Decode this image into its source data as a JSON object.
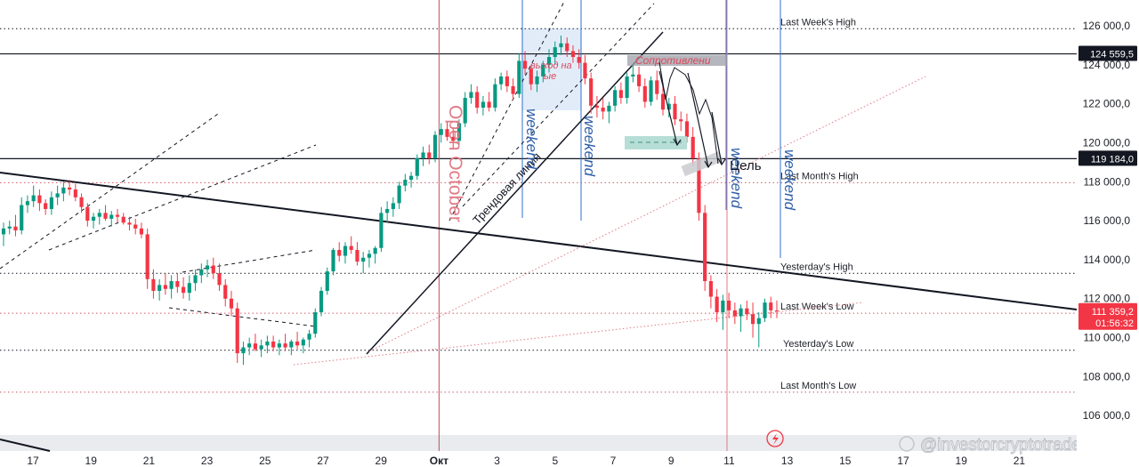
{
  "chart_data": {
    "type": "candlestick",
    "price_axis": {
      "range": [
        105000,
        126800
      ],
      "ticks": [
        126000,
        124000,
        122000,
        120000,
        118000,
        116000,
        114000,
        112000,
        110000,
        108000,
        106000
      ],
      "tick_labels": [
        "126 000,0",
        "124 000,0",
        "122 000,0",
        "120 000,0",
        "118 000,0",
        "116 000,0",
        "114 000,0",
        "112 000,0",
        "110 000,0",
        "108 000,0",
        "106 000,0"
      ]
    },
    "time_axis": {
      "ticks": [
        "17",
        "19",
        "21",
        "23",
        "25",
        "27",
        "29",
        "Окт",
        "3",
        "5",
        "7",
        "9",
        "11",
        "13",
        "15",
        "17",
        "19",
        "21"
      ],
      "tick_index": [
        0,
        2,
        4,
        6,
        8,
        10,
        12,
        14,
        16,
        18,
        20,
        22,
        24,
        26,
        28,
        30,
        32,
        34
      ]
    },
    "price_labels": [
      {
        "value": 124559.5,
        "text": "124 559,5",
        "color": "#131722"
      },
      {
        "value": 119184.0,
        "text": "119 184,0",
        "color": "#131722"
      },
      {
        "value": 111359.2,
        "text": "111 359,2",
        "sub": "01:56:32",
        "color": "#f23645"
      }
    ],
    "levels": [
      {
        "label": "Last Week's High",
        "value": 125850,
        "color": "#131722"
      },
      {
        "label": "Last Month's High",
        "value": 117950,
        "color": "#d05a66"
      },
      {
        "label": "Yesterday's High",
        "value": 113300,
        "color": "#131722"
      },
      {
        "label": "Last Week's Low",
        "value": 111250,
        "color": "#d05a66"
      },
      {
        "label": "Yesterday's Low",
        "value": 109350,
        "color": "#131722"
      },
      {
        "label": "Last Month's Low",
        "value": 107200,
        "color": "#d05a66"
      }
    ],
    "annotations": {
      "open_october": "Open October",
      "trend_line": "Трендовая линия",
      "breakout": "выход на",
      "breakout2": "ые",
      "resistance": "Сопротивлени",
      "target": "Цель",
      "weekend": "weekend",
      "watermark": "@investorcryptotrader"
    },
    "colors": {
      "up": "#089981",
      "down": "#f23645",
      "weekend_line": "#2f6fd0",
      "month_line": "#d05a66"
    },
    "candles": [
      [
        115300,
        115900,
        114700,
        115600
      ],
      [
        115600,
        116000,
        115300,
        115700
      ],
      [
        115700,
        116300,
        115200,
        115500
      ],
      [
        115500,
        117200,
        115300,
        116800
      ],
      [
        116800,
        117300,
        116400,
        117000
      ],
      [
        117000,
        117800,
        116700,
        117300
      ],
      [
        117300,
        117600,
        116500,
        116900
      ],
      [
        116900,
        117100,
        116300,
        116600
      ],
      [
        116600,
        117500,
        116300,
        117200
      ],
      [
        117200,
        117800,
        116800,
        117400
      ],
      [
        117400,
        118000,
        117000,
        117700
      ],
      [
        117700,
        118100,
        117300,
        117600
      ],
      [
        117600,
        117900,
        117000,
        117200
      ],
      [
        117200,
        117400,
        116400,
        116700
      ],
      [
        116700,
        116900,
        115700,
        116000
      ],
      [
        116000,
        116400,
        115600,
        116200
      ],
      [
        116200,
        116600,
        115800,
        116400
      ],
      [
        116400,
        116800,
        116000,
        116100
      ],
      [
        116100,
        116500,
        115700,
        116300
      ],
      [
        116300,
        116600,
        115900,
        116200
      ],
      [
        116200,
        116400,
        115800,
        115900
      ],
      [
        115900,
        116200,
        115500,
        115800
      ],
      [
        115800,
        116100,
        115300,
        115600
      ],
      [
        115600,
        115900,
        115100,
        115300
      ],
      [
        115300,
        115600,
        112500,
        113000
      ],
      [
        113000,
        113500,
        112000,
        112400
      ],
      [
        112400,
        113000,
        111900,
        112700
      ],
      [
        112700,
        113300,
        112200,
        112500
      ],
      [
        112500,
        113200,
        112000,
        112900
      ],
      [
        112900,
        113300,
        112300,
        112600
      ],
      [
        112600,
        113100,
        112000,
        112300
      ],
      [
        112300,
        113200,
        111900,
        112800
      ],
      [
        112800,
        113500,
        112400,
        113200
      ],
      [
        113200,
        113800,
        112800,
        113500
      ],
      [
        113500,
        114000,
        113100,
        113700
      ],
      [
        113700,
        114100,
        113000,
        113300
      ],
      [
        113300,
        113800,
        112400,
        112700
      ],
      [
        112700,
        113000,
        111600,
        112000
      ],
      [
        112000,
        112400,
        111100,
        111500
      ],
      [
        111500,
        111800,
        108700,
        109200
      ],
      [
        109200,
        109800,
        108600,
        109500
      ],
      [
        109500,
        110000,
        109100,
        109700
      ],
      [
        109700,
        110200,
        109300,
        109400
      ],
      [
        109400,
        109900,
        109000,
        109600
      ],
      [
        109600,
        110100,
        109200,
        109800
      ],
      [
        109800,
        110100,
        109300,
        109500
      ],
      [
        109500,
        109900,
        109100,
        109700
      ],
      [
        109700,
        110200,
        109300,
        109500
      ],
      [
        109500,
        109900,
        109100,
        109800
      ],
      [
        109800,
        110300,
        109400,
        109600
      ],
      [
        109600,
        110000,
        109200,
        109900
      ],
      [
        109900,
        110400,
        109500,
        110200
      ],
      [
        110200,
        111500,
        110000,
        111300
      ],
      [
        111300,
        112600,
        111100,
        112400
      ],
      [
        112400,
        113600,
        112200,
        113400
      ],
      [
        113400,
        114600,
        113200,
        114500
      ],
      [
        114500,
        114900,
        113900,
        114200
      ],
      [
        114200,
        114900,
        113800,
        114700
      ],
      [
        114700,
        115200,
        114300,
        114500
      ],
      [
        114500,
        114900,
        113700,
        113900
      ],
      [
        113900,
        114400,
        113300,
        114100
      ],
      [
        114100,
        114500,
        113600,
        114300
      ],
      [
        114300,
        114700,
        113800,
        114600
      ],
      [
        114600,
        116700,
        114400,
        116400
      ],
      [
        116400,
        117000,
        115900,
        116600
      ],
      [
        116600,
        117200,
        116200,
        116900
      ],
      [
        116900,
        118000,
        116600,
        117800
      ],
      [
        117800,
        118400,
        117500,
        118100
      ],
      [
        118100,
        118500,
        117700,
        118300
      ],
      [
        118300,
        119400,
        118100,
        119200
      ],
      [
        119200,
        119800,
        118800,
        119500
      ],
      [
        119500,
        119900,
        118900,
        119200
      ],
      [
        119200,
        120600,
        119000,
        120400
      ],
      [
        120400,
        121000,
        120000,
        120700
      ],
      [
        120700,
        121100,
        120100,
        120300
      ],
      [
        120300,
        120800,
        119700,
        120100
      ],
      [
        120100,
        121200,
        119900,
        121000
      ],
      [
        121000,
        122600,
        120800,
        122300
      ],
      [
        122300,
        123000,
        122000,
        122600
      ],
      [
        122600,
        122900,
        121500,
        121800
      ],
      [
        121800,
        122400,
        121400,
        122100
      ],
      [
        122100,
        122600,
        121600,
        121800
      ],
      [
        121800,
        123300,
        121600,
        123000
      ],
      [
        123000,
        123600,
        122700,
        123400
      ],
      [
        123400,
        123700,
        122600,
        122900
      ],
      [
        122900,
        123300,
        122200,
        122500
      ],
      [
        122500,
        124600,
        122300,
        124200
      ],
      [
        124200,
        124700,
        123500,
        123800
      ],
      [
        123800,
        124000,
        122700,
        123000
      ],
      [
        123000,
        123700,
        122600,
        123400
      ],
      [
        123400,
        124200,
        123100,
        124000
      ],
      [
        124000,
        124800,
        123600,
        124400
      ],
      [
        124400,
        125200,
        124000,
        124900
      ],
      [
        124900,
        125500,
        124500,
        125100
      ],
      [
        125100,
        125400,
        124400,
        124700
      ],
      [
        124700,
        125000,
        124100,
        124400
      ],
      [
        124400,
        124800,
        123800,
        124100
      ],
      [
        124100,
        124500,
        123000,
        123300
      ],
      [
        123300,
        123600,
        121500,
        121900
      ],
      [
        121900,
        122400,
        121300,
        121800
      ],
      [
        121800,
        122300,
        121200,
        121600
      ],
      [
        121600,
        122100,
        121000,
        121900
      ],
      [
        121900,
        122900,
        121600,
        122700
      ],
      [
        122700,
        123100,
        122000,
        122300
      ],
      [
        122300,
        123600,
        122000,
        123400
      ],
      [
        123400,
        124000,
        123100,
        123500
      ],
      [
        123500,
        123900,
        122600,
        122900
      ],
      [
        122900,
        123300,
        121800,
        122100
      ],
      [
        122100,
        123400,
        121900,
        123200
      ],
      [
        123200,
        123700,
        122200,
        122500
      ],
      [
        122500,
        122900,
        121400,
        121700
      ],
      [
        121700,
        122300,
        121300,
        122000
      ],
      [
        122000,
        122400,
        120900,
        121200
      ],
      [
        121200,
        121600,
        120600,
        121100
      ],
      [
        121100,
        121500,
        120000,
        120300
      ],
      [
        120300,
        120800,
        118800,
        119200
      ],
      [
        119200,
        119500,
        116000,
        116400
      ],
      [
        116400,
        116800,
        112400,
        112900
      ],
      [
        112900,
        113200,
        111500,
        112100
      ],
      [
        112100,
        112500,
        110800,
        111300
      ],
      [
        111300,
        112200,
        110400,
        111900
      ],
      [
        111900,
        112300,
        111000,
        111400
      ],
      [
        111400,
        111800,
        110700,
        111100
      ],
      [
        111100,
        111700,
        110300,
        111500
      ],
      [
        111500,
        111900,
        110900,
        111200
      ],
      [
        111200,
        111800,
        110000,
        110700
      ],
      [
        110700,
        111300,
        109500,
        111000
      ],
      [
        111000,
        112000,
        110800,
        111800
      ],
      [
        111800,
        112100,
        111000,
        111400
      ],
      [
        111400,
        111900,
        111000,
        111359
      ]
    ]
  }
}
